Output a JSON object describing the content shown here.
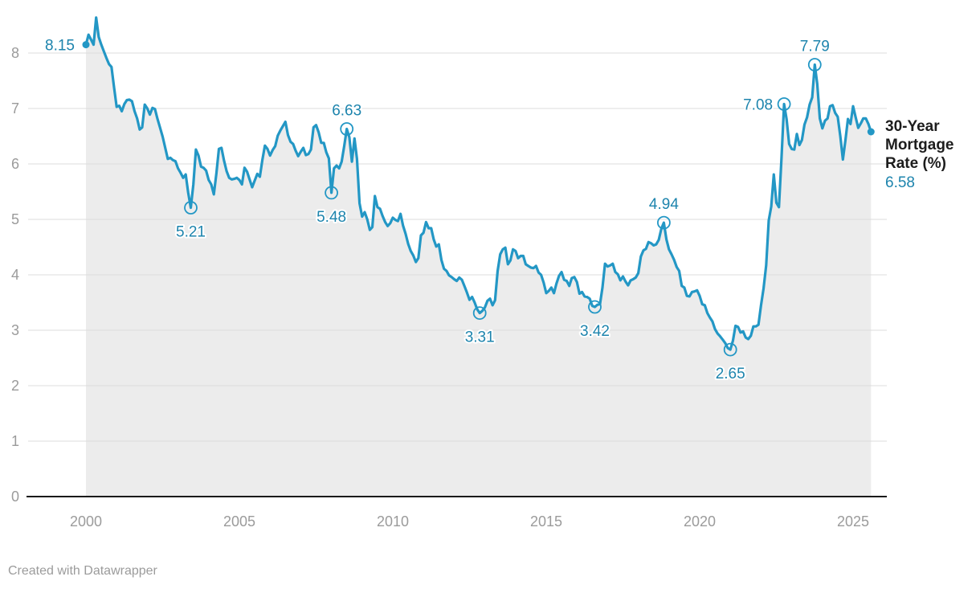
{
  "legend": {
    "title_lines": [
      "30-Year",
      "Mortgage",
      "Rate (%)"
    ],
    "value": "6.58"
  },
  "footer": {
    "text": "Created with Datawrapper"
  },
  "chart_data": {
    "type": "line",
    "title": "",
    "series_name": "30-Year Mortgage Rate (%)",
    "x_unit": "month",
    "x_start": "2000-01",
    "x_end": "2025-08",
    "points_per_year": 12,
    "xticks": [
      2000,
      2005,
      2010,
      2015,
      2020,
      2025
    ],
    "yticks": [
      0,
      1,
      2,
      3,
      4,
      5,
      6,
      7,
      8
    ],
    "ylim": [
      0,
      8.8
    ],
    "grid": true,
    "legend_position": "right-end",
    "latest_value": 6.58,
    "values": [
      8.15,
      8.33,
      8.24,
      8.15,
      8.64,
      8.29,
      8.15,
      8.03,
      7.91,
      7.8,
      7.75,
      7.38,
      7.03,
      7.05,
      6.95,
      7.08,
      7.15,
      7.16,
      7.13,
      6.95,
      6.82,
      6.62,
      6.66,
      7.07,
      7.0,
      6.89,
      7.01,
      6.99,
      6.81,
      6.65,
      6.49,
      6.29,
      6.09,
      6.11,
      6.07,
      6.05,
      5.92,
      5.84,
      5.75,
      5.81,
      5.48,
      5.21,
      5.63,
      6.26,
      6.15,
      5.95,
      5.93,
      5.88,
      5.71,
      5.63,
      5.45,
      5.83,
      6.27,
      6.29,
      6.06,
      5.87,
      5.75,
      5.72,
      5.73,
      5.75,
      5.71,
      5.63,
      5.93,
      5.86,
      5.72,
      5.58,
      5.7,
      5.82,
      5.77,
      6.07,
      6.33,
      6.27,
      6.15,
      6.25,
      6.32,
      6.51,
      6.6,
      6.68,
      6.76,
      6.52,
      6.4,
      6.36,
      6.24,
      6.14,
      6.22,
      6.29,
      6.16,
      6.18,
      6.26,
      6.66,
      6.7,
      6.57,
      6.38,
      6.38,
      6.21,
      6.1,
      5.48,
      5.92,
      5.97,
      5.92,
      6.04,
      6.32,
      6.63,
      6.48,
      6.04,
      6.46,
      6.09,
      5.29,
      5.05,
      5.13,
      5.0,
      4.81,
      4.86,
      5.42,
      5.22,
      5.19,
      5.06,
      4.95,
      4.88,
      4.93,
      5.03,
      4.99,
      4.97,
      5.1,
      4.89,
      4.74,
      4.56,
      4.43,
      4.35,
      4.23,
      4.3,
      4.71,
      4.76,
      4.95,
      4.84,
      4.84,
      4.64,
      4.51,
      4.55,
      4.27,
      4.11,
      4.07,
      3.99,
      3.96,
      3.92,
      3.89,
      3.95,
      3.91,
      3.8,
      3.68,
      3.55,
      3.6,
      3.5,
      3.38,
      3.31,
      3.35,
      3.41,
      3.53,
      3.57,
      3.45,
      3.54,
      4.07,
      4.37,
      4.46,
      4.49,
      4.19,
      4.26,
      4.46,
      4.43,
      4.3,
      4.34,
      4.34,
      4.19,
      4.16,
      4.13,
      4.12,
      4.16,
      4.04,
      4.0,
      3.86,
      3.67,
      3.71,
      3.77,
      3.67,
      3.84,
      3.98,
      4.05,
      3.91,
      3.89,
      3.8,
      3.94,
      3.96,
      3.87,
      3.66,
      3.69,
      3.61,
      3.6,
      3.57,
      3.44,
      3.42,
      3.46,
      3.47,
      3.77,
      4.2,
      4.15,
      4.17,
      4.2,
      4.05,
      4.01,
      3.9,
      3.97,
      3.88,
      3.81,
      3.9,
      3.92,
      3.95,
      4.03,
      4.33,
      4.44,
      4.47,
      4.59,
      4.57,
      4.53,
      4.55,
      4.63,
      4.83,
      4.94,
      4.64,
      4.46,
      4.37,
      4.27,
      4.14,
      4.07,
      3.8,
      3.77,
      3.62,
      3.61,
      3.69,
      3.7,
      3.72,
      3.62,
      3.47,
      3.45,
      3.31,
      3.23,
      3.16,
      3.02,
      2.94,
      2.89,
      2.83,
      2.77,
      2.68,
      2.65,
      2.81,
      3.08,
      3.06,
      2.96,
      2.98,
      2.87,
      2.84,
      2.9,
      3.07,
      3.07,
      3.1,
      3.45,
      3.76,
      4.17,
      4.98,
      5.23,
      5.81,
      5.3,
      5.22,
      6.11,
      7.08,
      6.81,
      6.36,
      6.27,
      6.26,
      6.54,
      6.34,
      6.43,
      6.71,
      6.84,
      7.07,
      7.2,
      7.79,
      7.44,
      6.82,
      6.64,
      6.78,
      6.82,
      7.04,
      7.06,
      6.92,
      6.85,
      6.5,
      6.08,
      6.43,
      6.81,
      6.72,
      7.04,
      6.84,
      6.65,
      6.73,
      6.82,
      6.82,
      6.72,
      6.58
    ],
    "annotations": [
      {
        "month_index": 0,
        "label": "8.15",
        "placement": "left",
        "marker": "dot"
      },
      {
        "month_index": 41,
        "label": "5.21",
        "placement": "below",
        "marker": "circle"
      },
      {
        "month_index": 96,
        "label": "5.48",
        "placement": "below",
        "marker": "circle"
      },
      {
        "month_index": 102,
        "label": "6.63",
        "placement": "above",
        "marker": "circle"
      },
      {
        "month_index": 154,
        "label": "3.31",
        "placement": "below",
        "marker": "circle"
      },
      {
        "month_index": 199,
        "label": "3.42",
        "placement": "below",
        "marker": "circle"
      },
      {
        "month_index": 226,
        "label": "4.94",
        "placement": "above",
        "marker": "circle"
      },
      {
        "month_index": 252,
        "label": "2.65",
        "placement": "below",
        "marker": "circle"
      },
      {
        "month_index": 273,
        "label": "7.08",
        "placement": "left",
        "marker": "circle"
      },
      {
        "month_index": 285,
        "label": "7.79",
        "placement": "above",
        "marker": "circle"
      },
      {
        "month_index": 307,
        "label": "",
        "placement": "none",
        "marker": "dot"
      }
    ],
    "colors": {
      "line": "#2397c5",
      "annotation_text": "#1d84ad",
      "area_fill": "#ececec",
      "gridline": "#dcdcdc",
      "axis_line": "#1a1a1a",
      "tick_label": "#9b9b9b",
      "legend_title": "#1d1d1d",
      "legend_value": "#1d84ad"
    }
  }
}
